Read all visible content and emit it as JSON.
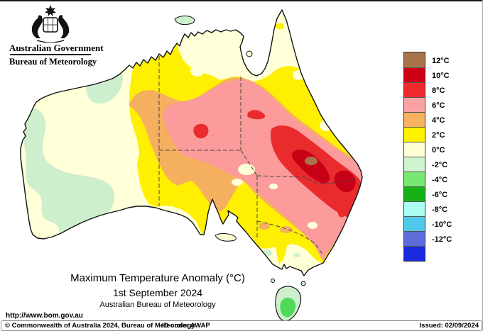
{
  "header": {
    "government": "Australian Government",
    "bureau": "Bureau of Meteorology"
  },
  "legend": {
    "labels": [
      "12°C",
      "10°C",
      "8°C",
      "6°C",
      "4°C",
      "2°C",
      "0°C",
      "-2°C",
      "-4°C",
      "-6°C",
      "-8°C",
      "-10°C",
      "-12°C"
    ],
    "colors": [
      "#A9734A",
      "#CE0016",
      "#EF2A2D",
      "#FBA2A4",
      "#F6B161",
      "#FFF200",
      "#FFFFD5",
      "#CFF3CE",
      "#79E873",
      "#17B117",
      "#ABFCF1",
      "#4FC8EA",
      "#5E6BD8",
      "#1A2ADF"
    ]
  },
  "palette": {
    "ocean": "#ffffff",
    "coast": "#111111",
    "stateborder": "#444444",
    "cream": "#FFFFD8",
    "pgreen": "#CDEFCD",
    "tasgreen": "#4ED95A",
    "yellow": "#FFEF00",
    "orange": "#F5B05F",
    "pink": "#FB9B9B",
    "red": "#EA2B2E",
    "dred": "#C80016",
    "brown": "#A9734A"
  },
  "map": {
    "title": "Maximum Temperature Anomaly (°C)",
    "date": "1st September 2024",
    "org": "Australian Bureau of Meteorology"
  },
  "footer": {
    "url": "http://www.bom.gov.au",
    "copyright": "© Commonwealth of Australia 2024, Bureau of Meteorology",
    "id_code": "ID code: AWAP",
    "issued": "Issued: 02/09/2024"
  }
}
